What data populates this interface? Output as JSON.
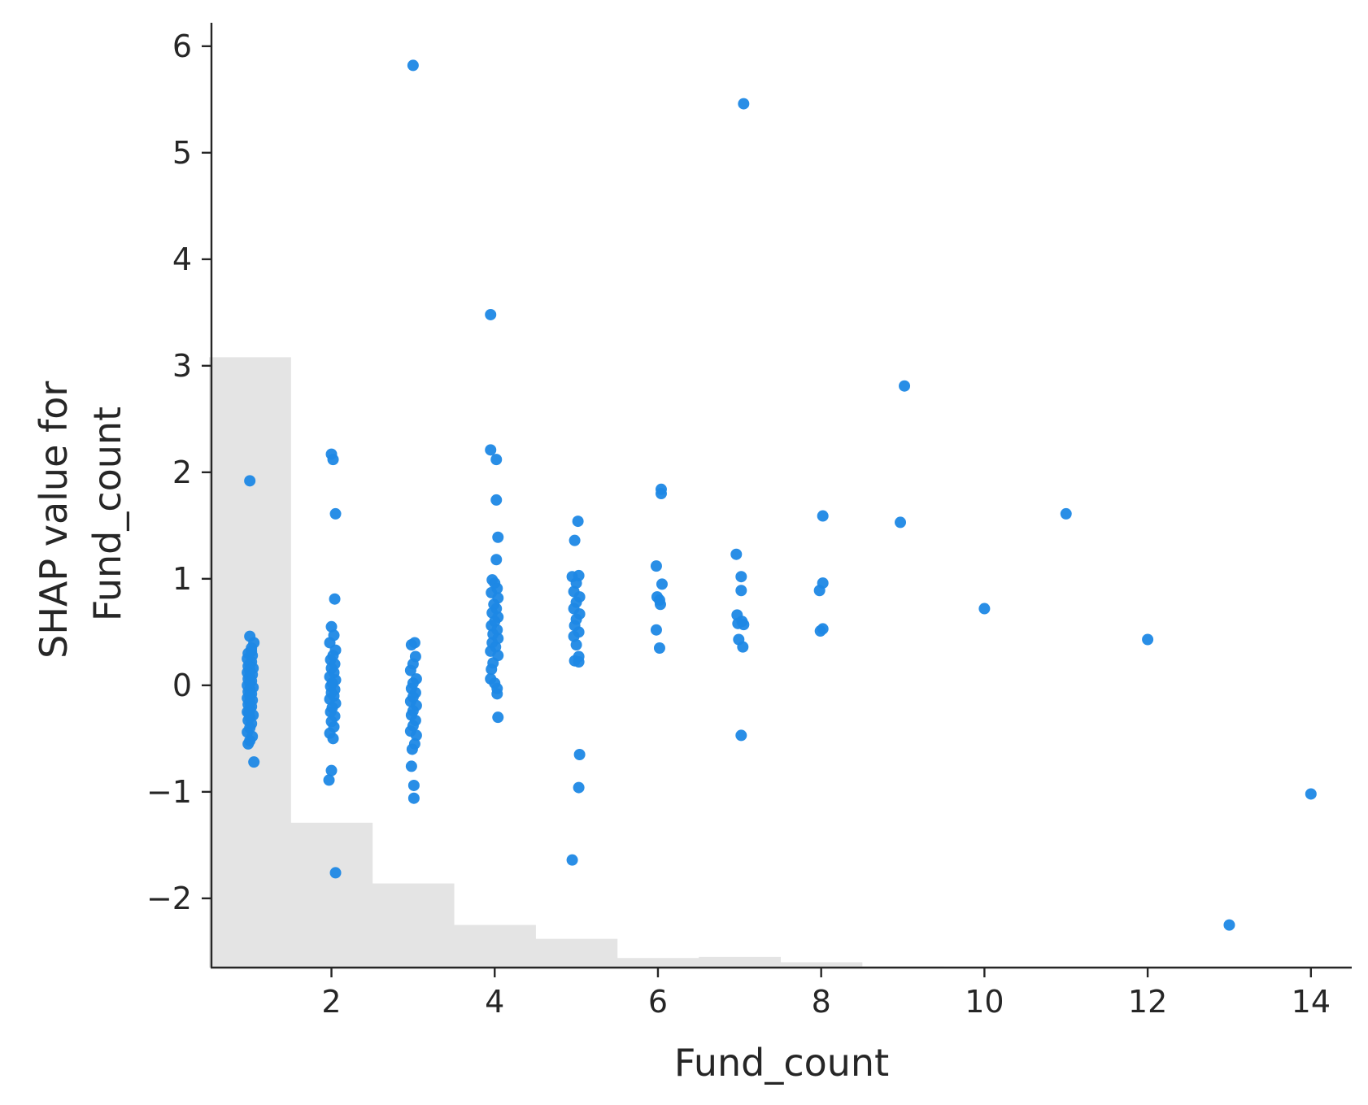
{
  "chart_data": {
    "type": "scatter",
    "title": "",
    "xlabel": "Fund_count",
    "ylabel_lines": [
      "SHAP value for",
      "Fund_count"
    ],
    "xlim": [
      0.53,
      14.5
    ],
    "ylim": [
      -2.65,
      6.22
    ],
    "xticks": [
      2,
      4,
      6,
      8,
      10,
      12,
      14
    ],
    "yticks": [
      -2,
      -1,
      0,
      1,
      2,
      3,
      4,
      5,
      6
    ],
    "xtick_labels": [
      "2",
      "4",
      "6",
      "8",
      "10",
      "12",
      "14"
    ],
    "ytick_labels": [
      "−2",
      "−1",
      "0",
      "1",
      "2",
      "3",
      "4",
      "5",
      "6"
    ],
    "grid": false,
    "point_color": "#1e88e5",
    "hist_color": "#e4e4e4",
    "histogram_background": {
      "bins": [
        1,
        2,
        3,
        4,
        5,
        6,
        7,
        8,
        9
      ],
      "heights_in_y_units": [
        5.73,
        1.36,
        0.79,
        0.4,
        0.27,
        0.09,
        0.1,
        0.05,
        0.01
      ]
    },
    "points": [
      [
        1.0,
        1.92
      ],
      [
        1.05,
        -0.72
      ],
      [
        1.0,
        0.46
      ],
      [
        1.05,
        0.4
      ],
      [
        1.02,
        0.35
      ],
      [
        0.98,
        0.3
      ],
      [
        1.03,
        0.28
      ],
      [
        0.97,
        0.25
      ],
      [
        1.02,
        0.22
      ],
      [
        1.0,
        0.2
      ],
      [
        0.98,
        0.18
      ],
      [
        1.04,
        0.16
      ],
      [
        1.0,
        0.14
      ],
      [
        0.97,
        0.12
      ],
      [
        1.03,
        0.1
      ],
      [
        1.0,
        0.08
      ],
      [
        0.98,
        0.06
      ],
      [
        1.02,
        0.04
      ],
      [
        1.0,
        0.02
      ],
      [
        0.97,
        0.0
      ],
      [
        1.04,
        -0.02
      ],
      [
        1.0,
        -0.04
      ],
      [
        0.98,
        -0.06
      ],
      [
        1.02,
        -0.08
      ],
      [
        1.0,
        -0.1
      ],
      [
        0.97,
        -0.12
      ],
      [
        1.03,
        -0.14
      ],
      [
        1.0,
        -0.16
      ],
      [
        0.98,
        -0.18
      ],
      [
        1.02,
        -0.2
      ],
      [
        1.0,
        -0.22
      ],
      [
        0.97,
        -0.25
      ],
      [
        1.04,
        -0.28
      ],
      [
        1.0,
        -0.3
      ],
      [
        0.98,
        -0.33
      ],
      [
        1.02,
        -0.36
      ],
      [
        1.0,
        -0.4
      ],
      [
        0.97,
        -0.44
      ],
      [
        1.03,
        -0.48
      ],
      [
        1.0,
        -0.52
      ],
      [
        0.98,
        -0.55
      ],
      [
        1.02,
        0.32
      ],
      [
        0.99,
        -0.26
      ],
      [
        2.0,
        2.17
      ],
      [
        2.02,
        2.12
      ],
      [
        2.05,
        1.61
      ],
      [
        2.04,
        0.81
      ],
      [
        2.0,
        0.55
      ],
      [
        2.03,
        0.47
      ],
      [
        1.98,
        0.4
      ],
      [
        2.05,
        0.33
      ],
      [
        2.02,
        0.28
      ],
      [
        1.99,
        0.24
      ],
      [
        2.04,
        0.2
      ],
      [
        2.0,
        0.16
      ],
      [
        2.03,
        0.12
      ],
      [
        1.98,
        0.08
      ],
      [
        2.05,
        0.05
      ],
      [
        2.01,
        0.02
      ],
      [
        1.99,
        -0.01
      ],
      [
        2.04,
        -0.04
      ],
      [
        2.0,
        -0.07
      ],
      [
        2.03,
        -0.1
      ],
      [
        1.98,
        -0.13
      ],
      [
        2.05,
        -0.17
      ],
      [
        2.01,
        -0.21
      ],
      [
        1.99,
        -0.25
      ],
      [
        2.04,
        -0.29
      ],
      [
        2.0,
        -0.34
      ],
      [
        2.03,
        -0.39
      ],
      [
        1.98,
        -0.45
      ],
      [
        2.02,
        -0.5
      ],
      [
        2.0,
        -0.8
      ],
      [
        1.97,
        -0.89
      ],
      [
        2.05,
        -1.76
      ],
      [
        3.0,
        5.82
      ],
      [
        3.02,
        0.4
      ],
      [
        2.98,
        0.38
      ],
      [
        3.03,
        0.27
      ],
      [
        3.0,
        0.2
      ],
      [
        2.97,
        0.14
      ],
      [
        3.04,
        0.06
      ],
      [
        3.0,
        0.02
      ],
      [
        2.98,
        -0.03
      ],
      [
        3.03,
        -0.07
      ],
      [
        3.0,
        -0.11
      ],
      [
        2.97,
        -0.15
      ],
      [
        3.04,
        -0.19
      ],
      [
        3.0,
        -0.24
      ],
      [
        2.98,
        -0.28
      ],
      [
        3.03,
        -0.33
      ],
      [
        3.0,
        -0.38
      ],
      [
        2.97,
        -0.43
      ],
      [
        3.04,
        -0.47
      ],
      [
        3.02,
        -0.55
      ],
      [
        2.99,
        -0.6
      ],
      [
        2.98,
        -0.76
      ],
      [
        3.01,
        -0.94
      ],
      [
        3.01,
        -1.06
      ],
      [
        3.95,
        3.48
      ],
      [
        3.95,
        2.21
      ],
      [
        4.02,
        2.12
      ],
      [
        4.02,
        1.74
      ],
      [
        4.04,
        1.39
      ],
      [
        4.02,
        1.18
      ],
      [
        3.97,
        0.99
      ],
      [
        4.0,
        0.96
      ],
      [
        4.03,
        0.91
      ],
      [
        3.96,
        0.87
      ],
      [
        4.04,
        0.82
      ],
      [
        3.99,
        0.76
      ],
      [
        4.02,
        0.72
      ],
      [
        3.97,
        0.68
      ],
      [
        4.04,
        0.64
      ],
      [
        4.0,
        0.6
      ],
      [
        3.96,
        0.56
      ],
      [
        4.03,
        0.52
      ],
      [
        3.98,
        0.48
      ],
      [
        4.04,
        0.44
      ],
      [
        3.97,
        0.4
      ],
      [
        4.01,
        0.36
      ],
      [
        3.95,
        0.32
      ],
      [
        4.04,
        0.28
      ],
      [
        3.98,
        0.21
      ],
      [
        3.96,
        0.15
      ],
      [
        3.95,
        0.06
      ],
      [
        4.0,
        0.02
      ],
      [
        4.03,
        -0.03
      ],
      [
        4.03,
        -0.08
      ],
      [
        4.04,
        -0.3
      ],
      [
        4.95,
        1.02
      ],
      [
        5.02,
        1.54
      ],
      [
        4.98,
        1.36
      ],
      [
        5.03,
        1.03
      ],
      [
        5.0,
        0.96
      ],
      [
        4.97,
        0.88
      ],
      [
        5.04,
        0.83
      ],
      [
        5.0,
        0.78
      ],
      [
        4.97,
        0.72
      ],
      [
        5.04,
        0.67
      ],
      [
        5.0,
        0.62
      ],
      [
        4.98,
        0.56
      ],
      [
        5.03,
        0.5
      ],
      [
        4.97,
        0.46
      ],
      [
        5.0,
        0.38
      ],
      [
        5.03,
        0.27
      ],
      [
        4.98,
        0.23
      ],
      [
        5.03,
        0.22
      ],
      [
        5.04,
        -0.65
      ],
      [
        5.03,
        -0.96
      ],
      [
        4.95,
        -1.64
      ],
      [
        6.04,
        1.84
      ],
      [
        6.04,
        1.8
      ],
      [
        5.98,
        1.12
      ],
      [
        6.05,
        0.95
      ],
      [
        5.99,
        0.83
      ],
      [
        6.02,
        0.8
      ],
      [
        6.03,
        0.76
      ],
      [
        5.98,
        0.52
      ],
      [
        6.02,
        0.35
      ],
      [
        6.96,
        1.23
      ],
      [
        7.02,
        1.02
      ],
      [
        7.02,
        0.89
      ],
      [
        6.97,
        0.66
      ],
      [
        7.03,
        0.6
      ],
      [
        6.98,
        0.58
      ],
      [
        7.05,
        0.57
      ],
      [
        6.99,
        0.43
      ],
      [
        7.04,
        0.36
      ],
      [
        7.02,
        -0.47
      ],
      [
        7.05,
        5.46
      ],
      [
        8.02,
        1.59
      ],
      [
        8.02,
        0.96
      ],
      [
        7.98,
        0.89
      ],
      [
        8.02,
        0.53
      ],
      [
        7.99,
        0.51
      ],
      [
        8.97,
        1.53
      ],
      [
        9.02,
        2.81
      ],
      [
        10.0,
        0.72
      ],
      [
        11.0,
        1.61
      ],
      [
        12.0,
        0.43
      ],
      [
        13.0,
        -2.25
      ],
      [
        14.0,
        -1.02
      ]
    ]
  }
}
